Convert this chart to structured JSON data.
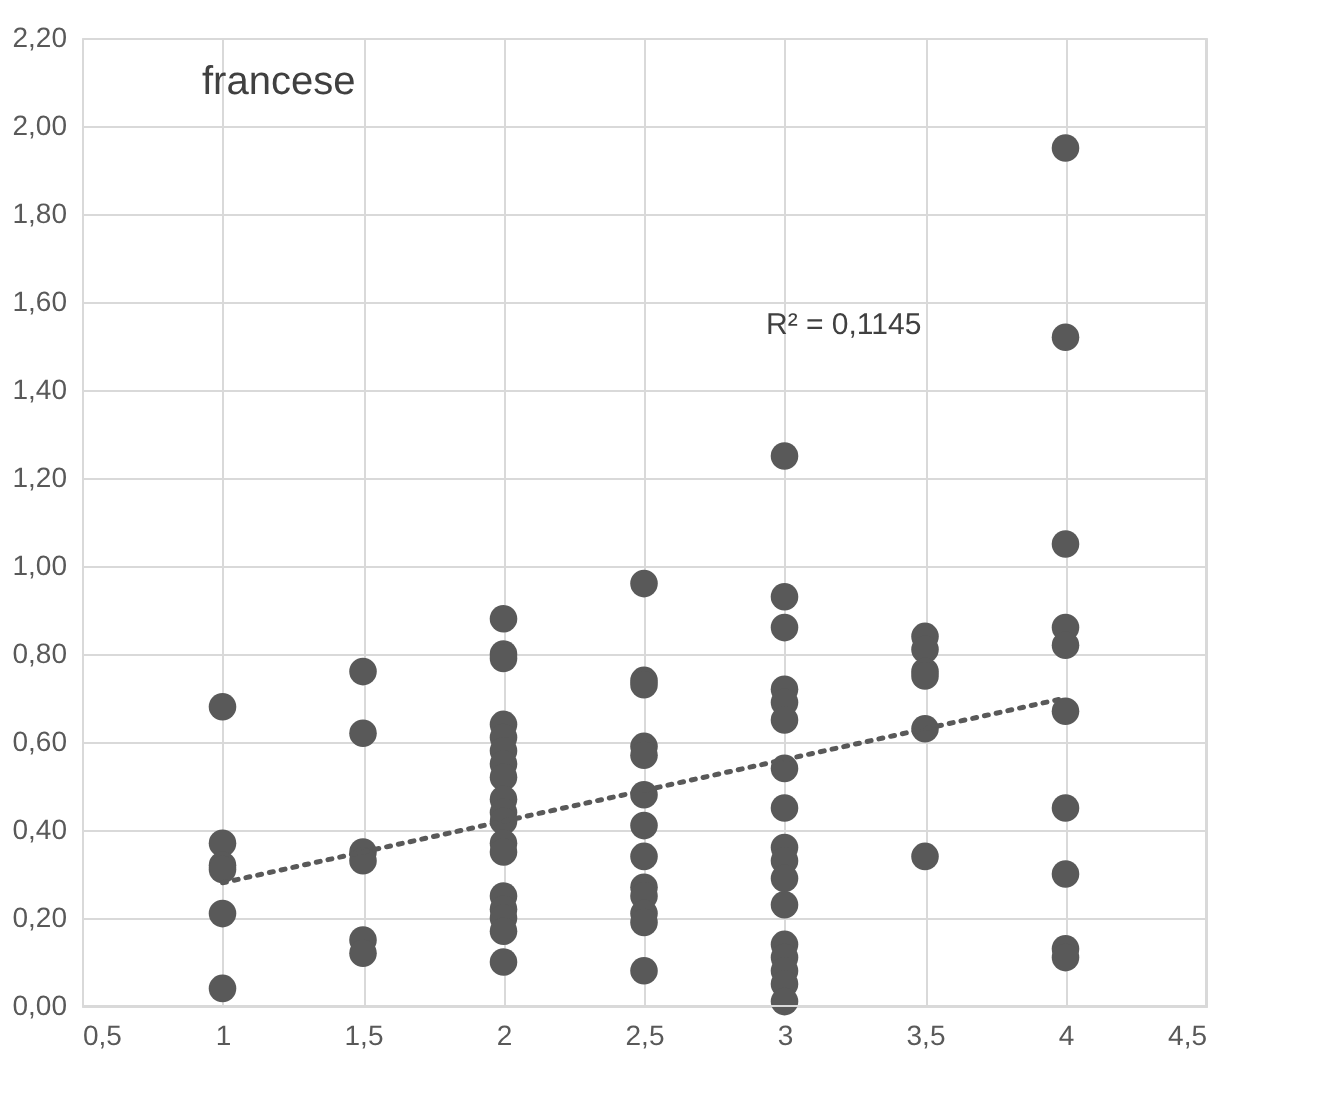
{
  "chart_data": {
    "type": "scatter",
    "title": "francese",
    "annotations": [
      "R² = 0,1145"
    ],
    "xlim": [
      0.5,
      4.5
    ],
    "ylim": [
      0,
      2.2
    ],
    "xticks": [
      {
        "value": 0.5,
        "label": "0,5"
      },
      {
        "value": 1,
        "label": "1"
      },
      {
        "value": 1.5,
        "label": "1,5"
      },
      {
        "value": 2,
        "label": "2"
      },
      {
        "value": 2.5,
        "label": "2,5"
      },
      {
        "value": 3,
        "label": "3"
      },
      {
        "value": 3.5,
        "label": "3,5"
      },
      {
        "value": 4,
        "label": "4"
      },
      {
        "value": 4.5,
        "label": "4,5"
      }
    ],
    "yticks": [
      {
        "value": 0,
        "label": "0,00"
      },
      {
        "value": 0.2,
        "label": "0,20"
      },
      {
        "value": 0.4,
        "label": "0,40"
      },
      {
        "value": 0.6,
        "label": "0,60"
      },
      {
        "value": 0.8,
        "label": "0,80"
      },
      {
        "value": 1.0,
        "label": "1,00"
      },
      {
        "value": 1.2,
        "label": "1,20"
      },
      {
        "value": 1.4,
        "label": "1,40"
      },
      {
        "value": 1.6,
        "label": "1,60"
      },
      {
        "value": 1.8,
        "label": "1,80"
      },
      {
        "value": 2.0,
        "label": "2,00"
      },
      {
        "value": 2.2,
        "label": "2,20"
      }
    ],
    "grid": true,
    "series": [
      {
        "color": "#595959",
        "marker": "circle",
        "x": [
          1,
          1,
          1,
          1,
          1,
          1,
          1.5,
          1.5,
          1.5,
          1.5,
          1.5,
          1.5,
          2,
          2,
          2,
          2,
          2,
          2,
          2,
          2,
          2,
          2,
          2,
          2,
          2,
          2,
          2,
          2,
          2,
          2,
          2.5,
          2.5,
          2.5,
          2.5,
          2.5,
          2.5,
          2.5,
          2.5,
          2.5,
          2.5,
          2.5,
          2.5,
          2.5,
          3,
          3,
          3,
          3,
          3,
          3,
          3,
          3,
          3,
          3,
          3,
          3,
          3,
          3,
          3,
          3,
          3,
          3.5,
          3.5,
          3.5,
          3.5,
          3.5,
          3.5,
          4,
          4,
          4,
          4,
          4,
          4,
          4,
          4,
          4,
          4
        ],
        "values": [
          0.68,
          0.37,
          0.32,
          0.31,
          0.21,
          0.04,
          0.76,
          0.62,
          0.35,
          0.33,
          0.15,
          0.12,
          0.88,
          0.8,
          0.79,
          0.64,
          0.61,
          0.58,
          0.55,
          0.52,
          0.47,
          0.44,
          0.42,
          0.37,
          0.35,
          0.25,
          0.22,
          0.2,
          0.17,
          0.1,
          0.96,
          0.74,
          0.73,
          0.59,
          0.57,
          0.48,
          0.41,
          0.34,
          0.27,
          0.25,
          0.21,
          0.19,
          0.08,
          1.25,
          0.93,
          0.86,
          0.72,
          0.69,
          0.65,
          0.54,
          0.45,
          0.36,
          0.33,
          0.29,
          0.23,
          0.14,
          0.11,
          0.08,
          0.05,
          0.01,
          0.84,
          0.81,
          0.76,
          0.75,
          0.63,
          0.34,
          1.95,
          1.52,
          1.05,
          0.86,
          0.82,
          0.67,
          0.45,
          0.3,
          0.13,
          0.11
        ]
      },
      {
        "type": "line",
        "color": "#595959",
        "line_style": "dotted",
        "marker": "none",
        "x": [
          1,
          4
        ],
        "values": [
          0.28,
          0.7
        ]
      }
    ]
  }
}
